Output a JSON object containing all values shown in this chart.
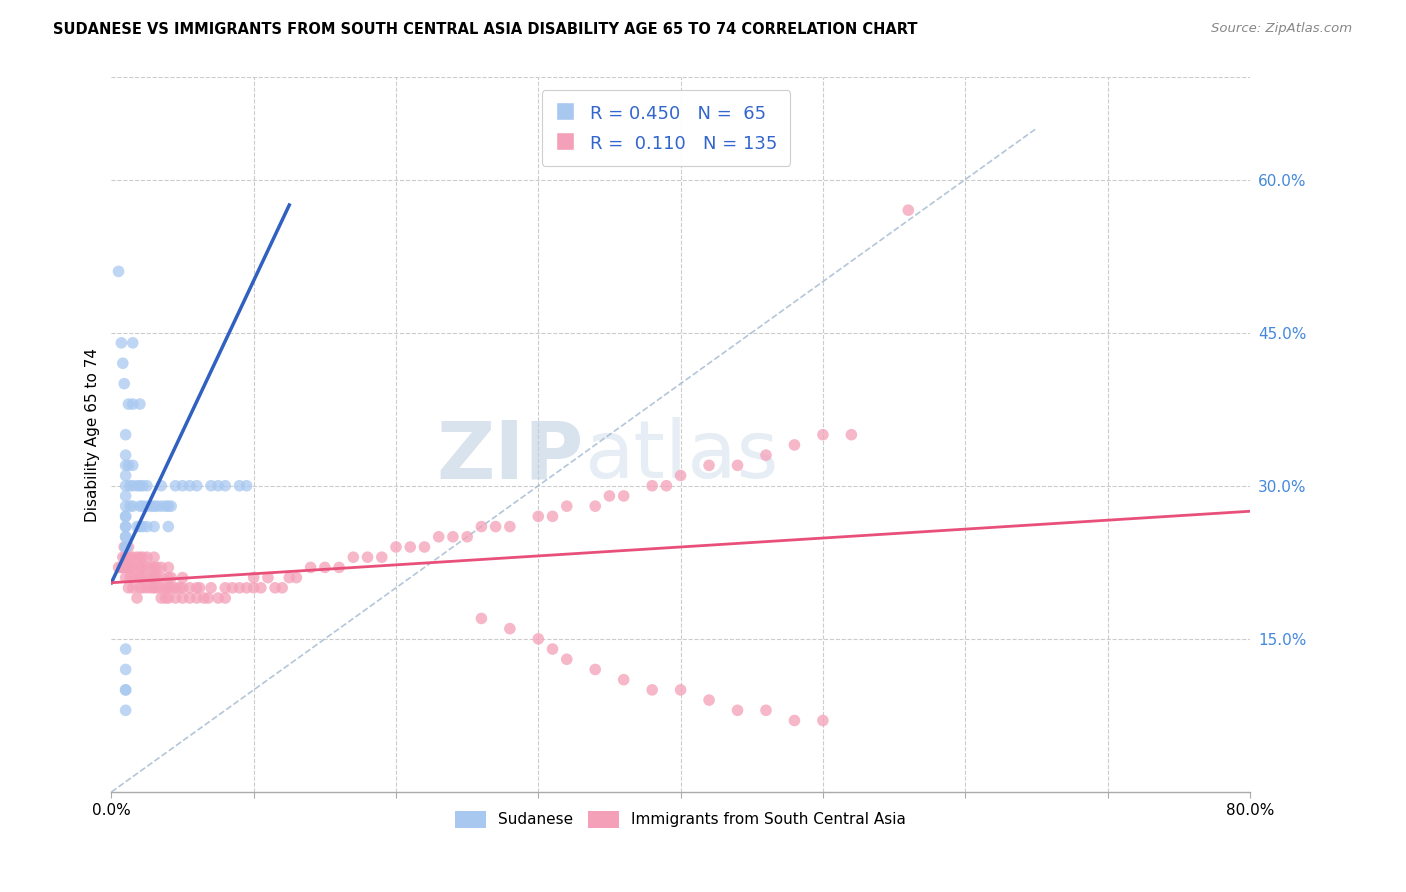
{
  "title": "SUDANESE VS IMMIGRANTS FROM SOUTH CENTRAL ASIA DISABILITY AGE 65 TO 74 CORRELATION CHART",
  "source": "Source: ZipAtlas.com",
  "ylabel": "Disability Age 65 to 74",
  "xlim": [
    0.0,
    0.8
  ],
  "ylim": [
    0.0,
    0.7
  ],
  "color_sudanese": "#A8C8F0",
  "color_asia": "#F4A0B8",
  "color_line_sudanese": "#3060C0",
  "color_line_asia": "#E8507A",
  "color_diagonal": "#A0B8D0",
  "watermark_zip": "ZIP",
  "watermark_atlas": "atlas",
  "sudanese_x": [
    0.005,
    0.007,
    0.008,
    0.009,
    0.01,
    0.01,
    0.01,
    0.01,
    0.01,
    0.01,
    0.01,
    0.01,
    0.01,
    0.01,
    0.01,
    0.01,
    0.01,
    0.01,
    0.01,
    0.01,
    0.012,
    0.012,
    0.013,
    0.013,
    0.015,
    0.015,
    0.015,
    0.015,
    0.015,
    0.018,
    0.018,
    0.02,
    0.02,
    0.02,
    0.02,
    0.022,
    0.022,
    0.022,
    0.025,
    0.025,
    0.025,
    0.028,
    0.03,
    0.03,
    0.032,
    0.035,
    0.035,
    0.038,
    0.04,
    0.04,
    0.042,
    0.045,
    0.05,
    0.055,
    0.06,
    0.07,
    0.075,
    0.08,
    0.09,
    0.095,
    0.01,
    0.01,
    0.01,
    0.01,
    0.01
  ],
  "sudanese_y": [
    0.51,
    0.44,
    0.42,
    0.4,
    0.35,
    0.33,
    0.32,
    0.31,
    0.3,
    0.29,
    0.28,
    0.27,
    0.27,
    0.26,
    0.26,
    0.25,
    0.25,
    0.24,
    0.24,
    0.24,
    0.38,
    0.32,
    0.3,
    0.28,
    0.44,
    0.38,
    0.32,
    0.3,
    0.28,
    0.3,
    0.26,
    0.38,
    0.3,
    0.28,
    0.26,
    0.3,
    0.28,
    0.26,
    0.3,
    0.28,
    0.26,
    0.28,
    0.28,
    0.26,
    0.28,
    0.3,
    0.28,
    0.28,
    0.28,
    0.26,
    0.28,
    0.3,
    0.3,
    0.3,
    0.3,
    0.3,
    0.3,
    0.3,
    0.3,
    0.3,
    0.12,
    0.14,
    0.1,
    0.1,
    0.08
  ],
  "asia_x": [
    0.005,
    0.007,
    0.008,
    0.008,
    0.009,
    0.009,
    0.01,
    0.01,
    0.01,
    0.01,
    0.01,
    0.01,
    0.012,
    0.012,
    0.012,
    0.013,
    0.013,
    0.015,
    0.015,
    0.015,
    0.015,
    0.015,
    0.018,
    0.018,
    0.018,
    0.02,
    0.02,
    0.02,
    0.02,
    0.02,
    0.02,
    0.022,
    0.022,
    0.022,
    0.022,
    0.025,
    0.025,
    0.025,
    0.025,
    0.028,
    0.028,
    0.028,
    0.03,
    0.03,
    0.03,
    0.03,
    0.03,
    0.032,
    0.032,
    0.032,
    0.035,
    0.035,
    0.035,
    0.035,
    0.038,
    0.038,
    0.04,
    0.04,
    0.04,
    0.04,
    0.042,
    0.042,
    0.045,
    0.045,
    0.048,
    0.05,
    0.05,
    0.05,
    0.055,
    0.055,
    0.06,
    0.06,
    0.062,
    0.065,
    0.068,
    0.07,
    0.075,
    0.08,
    0.08,
    0.085,
    0.09,
    0.095,
    0.1,
    0.1,
    0.105,
    0.11,
    0.115,
    0.12,
    0.125,
    0.13,
    0.14,
    0.15,
    0.16,
    0.17,
    0.18,
    0.19,
    0.2,
    0.21,
    0.22,
    0.23,
    0.24,
    0.25,
    0.26,
    0.27,
    0.28,
    0.3,
    0.31,
    0.32,
    0.34,
    0.35,
    0.36,
    0.38,
    0.39,
    0.4,
    0.42,
    0.44,
    0.46,
    0.48,
    0.5,
    0.52,
    0.3,
    0.31,
    0.32,
    0.34,
    0.36,
    0.38,
    0.4,
    0.42,
    0.44,
    0.46,
    0.48,
    0.5,
    0.28,
    0.26,
    0.56
  ],
  "asia_y": [
    0.22,
    0.22,
    0.22,
    0.23,
    0.22,
    0.24,
    0.22,
    0.23,
    0.24,
    0.22,
    0.21,
    0.23,
    0.2,
    0.22,
    0.24,
    0.21,
    0.23,
    0.2,
    0.22,
    0.21,
    0.23,
    0.22,
    0.19,
    0.21,
    0.23,
    0.2,
    0.21,
    0.22,
    0.23,
    0.21,
    0.22,
    0.2,
    0.21,
    0.22,
    0.23,
    0.2,
    0.21,
    0.22,
    0.23,
    0.2,
    0.21,
    0.22,
    0.2,
    0.21,
    0.22,
    0.23,
    0.21,
    0.2,
    0.21,
    0.22,
    0.19,
    0.2,
    0.21,
    0.22,
    0.19,
    0.2,
    0.19,
    0.2,
    0.21,
    0.22,
    0.2,
    0.21,
    0.19,
    0.2,
    0.2,
    0.19,
    0.2,
    0.21,
    0.19,
    0.2,
    0.19,
    0.2,
    0.2,
    0.19,
    0.19,
    0.2,
    0.19,
    0.19,
    0.2,
    0.2,
    0.2,
    0.2,
    0.2,
    0.21,
    0.2,
    0.21,
    0.2,
    0.2,
    0.21,
    0.21,
    0.22,
    0.22,
    0.22,
    0.23,
    0.23,
    0.23,
    0.24,
    0.24,
    0.24,
    0.25,
    0.25,
    0.25,
    0.26,
    0.26,
    0.26,
    0.27,
    0.27,
    0.28,
    0.28,
    0.29,
    0.29,
    0.3,
    0.3,
    0.31,
    0.32,
    0.32,
    0.33,
    0.34,
    0.35,
    0.35,
    0.15,
    0.14,
    0.13,
    0.12,
    0.11,
    0.1,
    0.1,
    0.09,
    0.08,
    0.08,
    0.07,
    0.07,
    0.16,
    0.17,
    0.57
  ],
  "blue_line_x": [
    0.0,
    0.125
  ],
  "blue_line_y": [
    0.205,
    0.575
  ],
  "pink_line_x": [
    0.0,
    0.8
  ],
  "pink_line_y": [
    0.205,
    0.275
  ],
  "diag_line_x": [
    0.0,
    0.65
  ],
  "diag_line_y": [
    0.0,
    0.65
  ]
}
